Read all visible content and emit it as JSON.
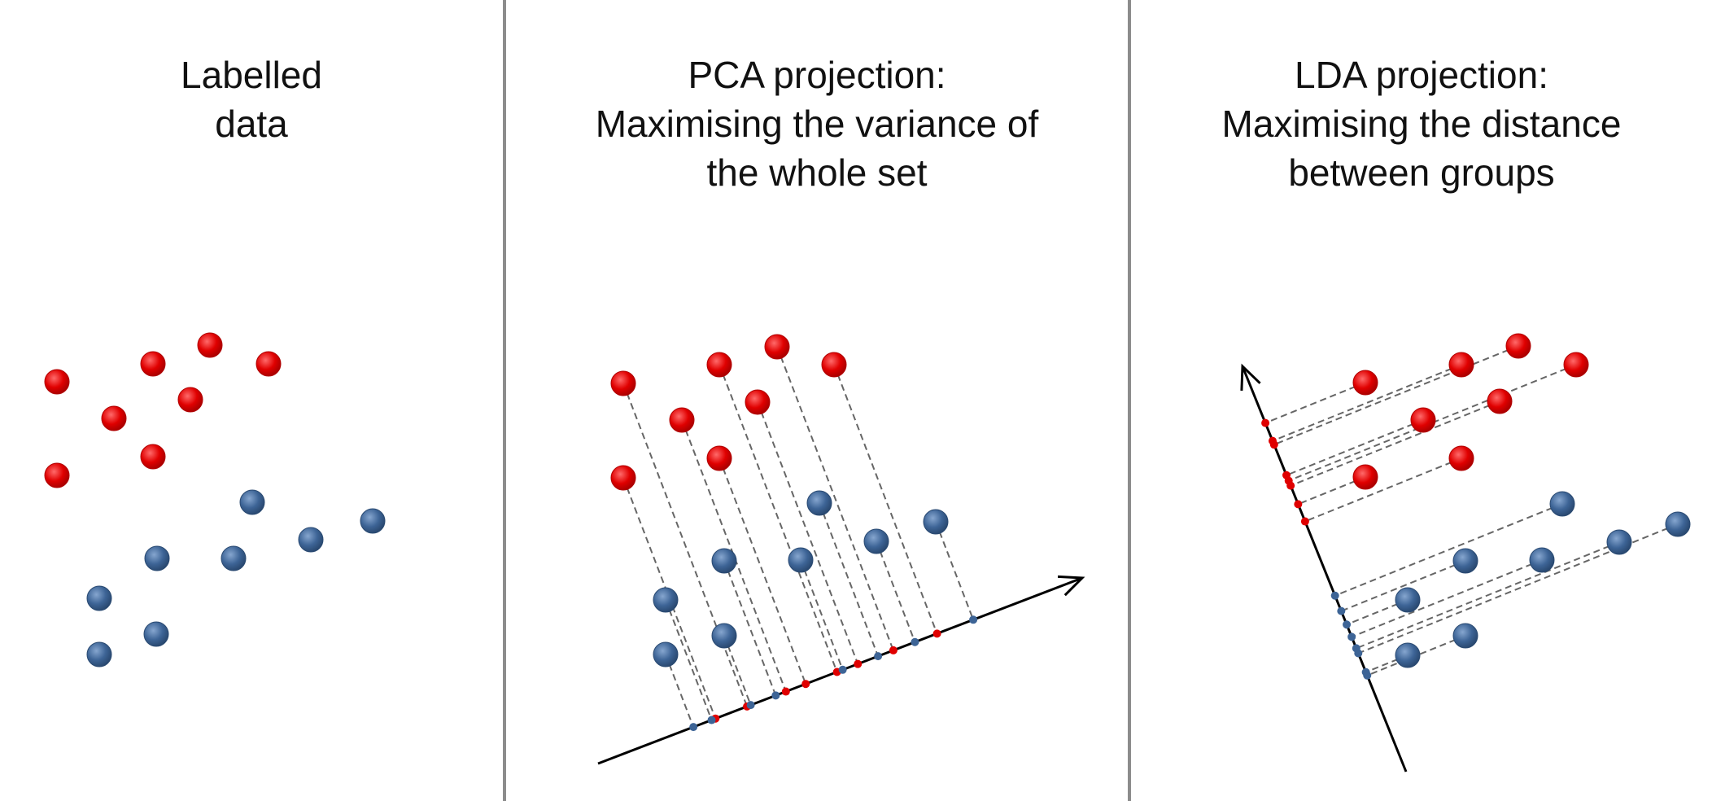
{
  "panels": [
    {
      "id": "labelled",
      "title_lines": [
        "Labelled",
        "data"
      ]
    },
    {
      "id": "pca",
      "title_lines": [
        "PCA projection:",
        "Maximising the variance of",
        "the whole set"
      ]
    },
    {
      "id": "lda",
      "title_lines": [
        "LDA projection:",
        "Maximising the distance",
        "between groups"
      ]
    }
  ],
  "colors": {
    "class_a": "#e00000",
    "class_b": "#3d6496",
    "axis": "#000000",
    "projection_line": "#666666",
    "divider": "#8c8c8c"
  },
  "classes": [
    "red",
    "blue"
  ]
}
